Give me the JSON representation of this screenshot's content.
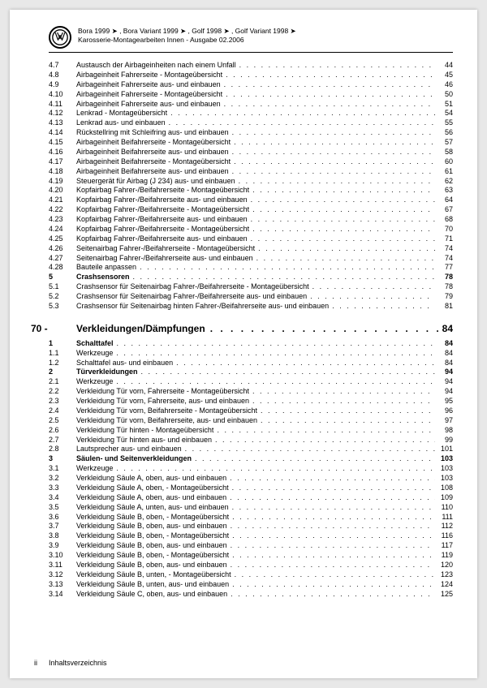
{
  "header": {
    "line1": "Bora 1999 ➤ , Bora Variant 1999 ➤ , Golf 1998 ➤ , Golf Variant 1998 ➤",
    "line2": "Karosserie-Montagearbeiten Innen - Ausgabe 02.2006"
  },
  "toc": [
    {
      "n": "4.7",
      "t": "Austausch der Airbageinheiten nach einem Unfall",
      "p": "44"
    },
    {
      "n": "4.8",
      "t": "Airbageinheit Fahrerseite - Montageübersicht",
      "p": "45"
    },
    {
      "n": "4.9",
      "t": "Airbageinheit Fahrerseite aus- und einbauen",
      "p": "46"
    },
    {
      "n": "4.10",
      "t": "Airbageinheit Fahrerseite - Montageübersicht",
      "p": "50"
    },
    {
      "n": "4.11",
      "t": "Airbageinheit Fahrerseite aus- und einbauen",
      "p": "51"
    },
    {
      "n": "4.12",
      "t": "Lenkrad - Montageübersicht",
      "p": "54"
    },
    {
      "n": "4.13",
      "t": "Lenkrad aus- und einbauen",
      "p": "55"
    },
    {
      "n": "4.14",
      "t": "Rückstellring mit Schleifring aus- und einbauen",
      "p": "56"
    },
    {
      "n": "4.15",
      "t": "Airbageinheit Beifahrerseite - Montageübersicht",
      "p": "57"
    },
    {
      "n": "4.16",
      "t": "Airbageinheit Beifahrerseite aus- und einbauen",
      "p": "58"
    },
    {
      "n": "4.17",
      "t": "Airbageinheit Beifahrerseite - Montageübersicht",
      "p": "60"
    },
    {
      "n": "4.18",
      "t": "Airbageinheit Beifahrerseite aus- und einbauen",
      "p": "61"
    },
    {
      "n": "4.19",
      "t": "Steuergerät für Airbag (J 234) aus- und einbauen",
      "p": "62"
    },
    {
      "n": "4.20",
      "t": "Kopfairbag Fahrer-/Beifahrerseite - Montageübersicht",
      "p": "63"
    },
    {
      "n": "4.21",
      "t": "Kopfairbag Fahrer-/Beifahrerseite aus- und einbauen",
      "p": "64"
    },
    {
      "n": "4.22",
      "t": "Kopfairbag Fahrer-/Beifahrerseite - Montageübersicht",
      "p": "67"
    },
    {
      "n": "4.23",
      "t": "Kopfairbag Fahrer-/Beifahrerseite aus- und einbauen",
      "p": "68"
    },
    {
      "n": "4.24",
      "t": "Kopfairbag Fahrer-/Beifahrerseite - Montageübersicht",
      "p": "70"
    },
    {
      "n": "4.25",
      "t": "Kopfairbag Fahrer-/Beifahrerseite aus- und einbauen",
      "p": "71"
    },
    {
      "n": "4.26",
      "t": "Seitenairbag Fahrer-/Beifahrerseite - Montageübersicht",
      "p": "74"
    },
    {
      "n": "4.27",
      "t": "Seitenairbag Fahrer-/Beifahrerseite aus- und einbauen",
      "p": "74"
    },
    {
      "n": "4.28",
      "t": "Bauteile anpassen",
      "p": "77"
    },
    {
      "n": "5",
      "t": "Crashsensoren",
      "p": "78",
      "b": true
    },
    {
      "n": "5.1",
      "t": "Crashsensor für Seitenairbag Fahrer-/Beifahrerseite - Montageübersicht",
      "p": "78"
    },
    {
      "n": "5.2",
      "t": "Crashsensor für Seitenairbag Fahrer-/Beifahrerseite aus- und einbauen",
      "p": "79"
    },
    {
      "n": "5.3",
      "t": "Crashsensor für Seitenairbag hinten Fahrer-/Beifahrerseite aus- und einbauen",
      "p": "81"
    }
  ],
  "chapter": {
    "num": "70 -",
    "title": "Verkleidungen/Dämpfungen",
    "page": "84"
  },
  "toc2": [
    {
      "n": "1",
      "t": "Schalttafel",
      "p": "84",
      "b": true
    },
    {
      "n": "1.1",
      "t": "Werkzeuge",
      "p": "84"
    },
    {
      "n": "1.2",
      "t": "Schalttafel aus- und einbauen",
      "p": "84"
    },
    {
      "n": "2",
      "t": "Türverkleidungen",
      "p": "94",
      "b": true
    },
    {
      "n": "2.1",
      "t": "Werkzeuge",
      "p": "94"
    },
    {
      "n": "2.2",
      "t": "Verkleidung Tür vorn, Fahrerseite - Montageübersicht",
      "p": "94"
    },
    {
      "n": "2.3",
      "t": "Verkleidung Tür vorn, Fahrerseite, aus- und einbauen",
      "p": "95"
    },
    {
      "n": "2.4",
      "t": "Verkleidung Tür vorn, Beifahrerseite - Montageübersicht",
      "p": "96"
    },
    {
      "n": "2.5",
      "t": "Verkleidung Tür vorn, Beifahrerseite, aus- und einbauen",
      "p": "97"
    },
    {
      "n": "2.6",
      "t": "Verkleidung Tür hinten - Montageübersicht",
      "p": "98"
    },
    {
      "n": "2.7",
      "t": "Verkleidung Tür hinten aus- und einbauen",
      "p": "99"
    },
    {
      "n": "2.8",
      "t": "Lautsprecher aus- und einbauen",
      "p": "101"
    },
    {
      "n": "3",
      "t": "Säulen- und Seitenverkleidungen",
      "p": "103",
      "b": true
    },
    {
      "n": "3.1",
      "t": "Werkzeuge",
      "p": "103"
    },
    {
      "n": "3.2",
      "t": "Verkleidung Säule A, oben, aus- und einbauen",
      "p": "103"
    },
    {
      "n": "3.3",
      "t": "Verkleidung Säule A, oben, - Montageübersicht",
      "p": "108"
    },
    {
      "n": "3.4",
      "t": "Verkleidung Säule A, oben, aus- und einbauen",
      "p": "109"
    },
    {
      "n": "3.5",
      "t": "Verkleidung Säule A, unten, aus- und einbauen",
      "p": "110"
    },
    {
      "n": "3.6",
      "t": "Verkleidung Säule B, oben, - Montageübersicht",
      "p": "111"
    },
    {
      "n": "3.7",
      "t": "Verkleidung Säule B, oben, aus- und einbauen",
      "p": "112"
    },
    {
      "n": "3.8",
      "t": "Verkleidung Säule B, oben, - Montageübersicht",
      "p": "116"
    },
    {
      "n": "3.9",
      "t": "Verkleidung Säule B, oben, aus- und einbauen",
      "p": "117"
    },
    {
      "n": "3.10",
      "t": "Verkleidung Säule B, oben, - Montageübersicht",
      "p": "119"
    },
    {
      "n": "3.11",
      "t": "Verkleidung Säule B, oben, aus- und einbauen",
      "p": "120"
    },
    {
      "n": "3.12",
      "t": "Verkleidung Säule B, unten, - Montageübersicht",
      "p": "123"
    },
    {
      "n": "3.13",
      "t": "Verkleidung Säule B, unten, aus- und einbauen",
      "p": "124"
    },
    {
      "n": "3.14",
      "t": "Verkleidung Säule C, oben, aus- und einbauen",
      "p": "125"
    }
  ],
  "footer": {
    "page": "ii",
    "label": "Inhaltsverzeichnis"
  }
}
